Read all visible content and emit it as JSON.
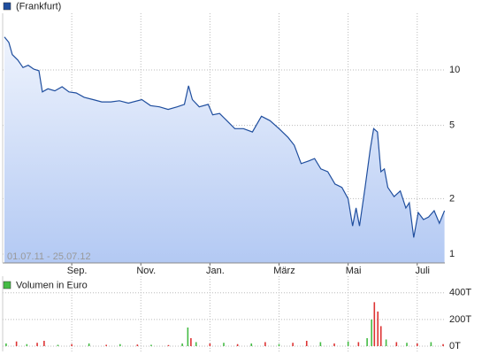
{
  "chart_data": [
    {
      "type": "line",
      "legend": "(Frankfurt)",
      "subtitle": "01.07.11 - 25.07.12",
      "log_scale": true,
      "grid": true,
      "color": "#1f4e9e",
      "x": [
        0.05,
        0.18,
        0.28,
        0.44,
        0.59,
        0.74,
        0.9,
        1.05,
        1.15,
        1.31,
        1.51,
        1.72,
        1.92,
        2.13,
        2.36,
        2.62,
        2.87,
        3.13,
        3.38,
        3.64,
        4.03,
        4.28,
        4.54,
        4.79,
        5.05,
        5.26,
        5.38,
        5.49,
        5.69,
        5.95,
        6.08,
        6.28,
        6.49,
        6.72,
        6.97,
        7.23,
        7.49,
        7.74,
        8.0,
        8.26,
        8.44,
        8.64,
        8.85,
        9.03,
        9.21,
        9.41,
        9.62,
        9.82,
        10.0,
        10.13,
        10.23,
        10.33,
        10.49,
        10.64,
        10.74,
        10.85,
        10.95,
        11.05,
        11.15,
        11.33,
        11.51,
        11.67,
        11.77,
        11.9,
        12.03,
        12.18,
        12.33,
        12.49,
        12.64,
        12.79
      ],
      "values": [
        15.1,
        14.1,
        12.1,
        11.3,
        10.3,
        10.6,
        10.1,
        9.9,
        7.6,
        7.9,
        7.7,
        8.1,
        7.6,
        7.5,
        7.1,
        6.9,
        6.7,
        6.7,
        6.8,
        6.6,
        6.9,
        6.4,
        6.3,
        6.1,
        6.3,
        6.5,
        8.2,
        6.9,
        6.3,
        6.5,
        5.7,
        5.8,
        5.3,
        4.8,
        4.8,
        4.6,
        5.6,
        5.3,
        4.8,
        4.3,
        3.9,
        3.1,
        3.2,
        3.3,
        2.9,
        2.8,
        2.4,
        2.3,
        2.0,
        1.42,
        1.78,
        1.42,
        2.3,
        3.7,
        4.8,
        4.6,
        2.8,
        2.9,
        2.3,
        2.05,
        2.2,
        1.78,
        1.9,
        1.23,
        1.68,
        1.54,
        1.59,
        1.72,
        1.47,
        1.72
      ],
      "xlim": [
        0,
        12.8
      ],
      "xticks": [
        {
          "value": 2,
          "label": "Sep."
        },
        {
          "value": 4,
          "label": "Nov."
        },
        {
          "value": 6,
          "label": "Jan."
        },
        {
          "value": 8,
          "label": "März"
        },
        {
          "value": 10,
          "label": "Mai"
        },
        {
          "value": 12,
          "label": "Juli"
        }
      ],
      "ylim": [
        0.895,
        20.3
      ],
      "yticks": [
        1,
        2,
        5,
        10
      ]
    },
    {
      "type": "bar",
      "legend": "Volumen in Euro",
      "color": "#44bb44",
      "grid": true,
      "x": [
        0.1,
        0.4,
        0.7,
        1.0,
        1.2,
        1.6,
        2.0,
        2.5,
        3.0,
        3.4,
        3.9,
        4.3,
        4.8,
        5.2,
        5.36,
        5.45,
        5.6,
        6.0,
        6.4,
        6.8,
        7.2,
        7.6,
        8.0,
        8.4,
        8.8,
        9.2,
        9.6,
        10.0,
        10.3,
        10.55,
        10.68,
        10.76,
        10.86,
        10.95,
        11.1,
        11.4,
        11.7,
        12.0,
        12.4,
        12.75
      ],
      "values": [
        20000,
        35000,
        15000,
        25000,
        40000,
        10000,
        15000,
        20000,
        10000,
        15000,
        12000,
        10000,
        8000,
        20000,
        140000,
        60000,
        30000,
        20000,
        25000,
        15000,
        20000,
        30000,
        15000,
        25000,
        40000,
        30000,
        20000,
        35000,
        30000,
        60000,
        200000,
        330000,
        260000,
        150000,
        50000,
        30000,
        25000,
        20000,
        30000,
        15000
      ],
      "colors": [
        "#44bb44",
        "#dd3333",
        "#44bb44",
        "#dd3333",
        "#dd3333",
        "#44bb44",
        "#dd3333",
        "#44bb44",
        "#dd3333",
        "#44bb44",
        "#dd3333",
        "#44bb44",
        "#dd3333",
        "#44bb44",
        "#44bb44",
        "#dd3333",
        "#44bb44",
        "#dd3333",
        "#44bb44",
        "#dd3333",
        "#44bb44",
        "#dd3333",
        "#44bb44",
        "#dd3333",
        "#dd3333",
        "#44bb44",
        "#dd3333",
        "#44bb44",
        "#dd3333",
        "#44bb44",
        "#44bb44",
        "#dd3333",
        "#dd3333",
        "#dd3333",
        "#44bb44",
        "#dd3333",
        "#44bb44",
        "#dd3333",
        "#44bb44",
        "#dd3333"
      ],
      "xlim": [
        0,
        12.8
      ],
      "ylim": [
        -40000,
        525000
      ],
      "yticks": [
        {
          "value": 0,
          "label": "0T"
        },
        {
          "value": 200000,
          "label": "200T"
        },
        {
          "value": 400000,
          "label": "400T"
        }
      ]
    }
  ]
}
